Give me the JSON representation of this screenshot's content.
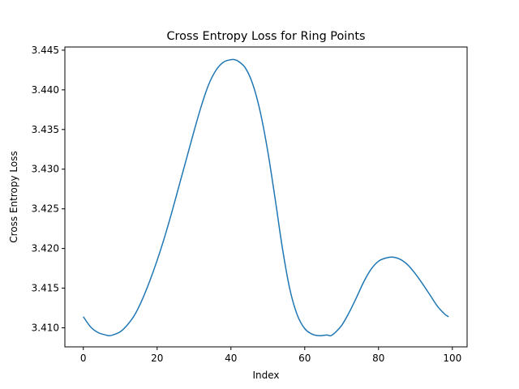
{
  "chart_data": {
    "type": "line",
    "title": "Cross Entropy Loss for Ring Points",
    "xlabel": "Index",
    "ylabel": "Cross Entropy Loss",
    "xlim": [
      -5,
      104
    ],
    "ylim": [
      3.4076,
      3.4454
    ],
    "xticks": [
      0,
      20,
      40,
      60,
      80,
      100
    ],
    "xtick_labels": [
      "0",
      "20",
      "40",
      "60",
      "80",
      "100"
    ],
    "yticks": [
      3.41,
      3.415,
      3.42,
      3.425,
      3.43,
      3.435,
      3.44,
      3.445
    ],
    "ytick_labels": [
      "3.410",
      "3.415",
      "3.420",
      "3.425",
      "3.430",
      "3.435",
      "3.440",
      "3.445"
    ],
    "grid": false,
    "series": [
      {
        "color": "#1f77b4",
        "x": [
          0,
          2,
          4,
          6,
          7,
          8,
          10,
          12,
          14,
          16,
          18,
          20,
          22,
          24,
          26,
          28,
          30,
          32,
          34,
          36,
          38,
          40,
          41,
          42,
          44,
          46,
          48,
          50,
          52,
          54,
          56,
          58,
          60,
          62,
          64,
          66,
          67,
          68,
          70,
          72,
          74,
          76,
          78,
          80,
          82,
          84,
          86,
          88,
          90,
          92,
          94,
          96,
          98,
          99
        ],
        "y": [
          3.4114,
          3.4101,
          3.4094,
          3.4091,
          3.409,
          3.4091,
          3.4095,
          3.4104,
          3.4117,
          3.4136,
          3.4159,
          3.4185,
          3.4214,
          3.4246,
          3.428,
          3.4314,
          3.4348,
          3.438,
          3.4407,
          3.4425,
          3.4435,
          3.4438,
          3.4438,
          3.4436,
          3.4427,
          3.4406,
          3.4371,
          3.4322,
          3.4262,
          3.4199,
          3.4148,
          3.4116,
          3.4099,
          3.4092,
          3.409,
          3.4091,
          3.409,
          3.4093,
          3.4103,
          3.4119,
          3.4138,
          3.4158,
          3.4174,
          3.4184,
          3.4188,
          3.4189,
          3.4186,
          3.4179,
          3.4168,
          3.4155,
          3.4141,
          3.4127,
          3.4117,
          3.4114
        ]
      }
    ]
  }
}
